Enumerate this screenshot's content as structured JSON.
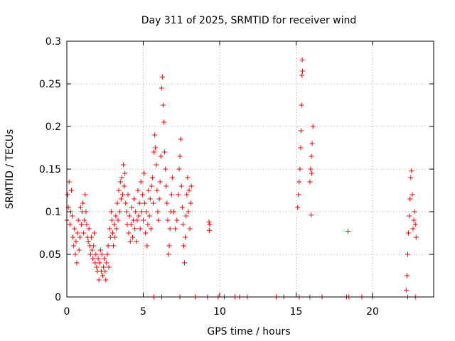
{
  "chart_data": {
    "type": "scatter",
    "title": "Day 311 of 2025, SRMTID for receiver wind",
    "xlabel": "GPS time / hours",
    "ylabel": "SRMTID / TECUs",
    "xlim": [
      0,
      24
    ],
    "ylim": [
      0,
      0.3
    ],
    "x_ticks": [
      0,
      5,
      10,
      15,
      20
    ],
    "x_tick_labels": [
      "0",
      "5",
      "10",
      "15",
      "20"
    ],
    "y_ticks": [
      0,
      0.05,
      0.1,
      0.15,
      0.2,
      0.25,
      0.3
    ],
    "y_tick_labels": [
      "0",
      "0.05",
      "0.1",
      "0.15",
      "0.2",
      "0.25",
      "0.3"
    ],
    "grid": true,
    "marker": "+",
    "color": "#ff0000",
    "series": [
      {
        "name": "SRMTID",
        "points": [
          [
            0.0,
            0.09
          ],
          [
            0.05,
            0.12
          ],
          [
            0.1,
            0.105
          ],
          [
            0.15,
            0.135
          ],
          [
            0.2,
            0.085
          ],
          [
            0.25,
            0.1
          ],
          [
            0.3,
            0.125
          ],
          [
            0.35,
            0.095
          ],
          [
            0.4,
            0.07
          ],
          [
            0.45,
            0.06
          ],
          [
            0.5,
            0.08
          ],
          [
            0.55,
            0.05
          ],
          [
            0.6,
            0.065
          ],
          [
            0.65,
            0.04
          ],
          [
            0.7,
            0.075
          ],
          [
            0.75,
            0.09
          ],
          [
            0.8,
            0.055
          ],
          [
            0.85,
            0.07
          ],
          [
            0.9,
            0.105
          ],
          [
            0.95,
            0.085
          ],
          [
            1.0,
            0.1
          ],
          [
            1.05,
            0.11
          ],
          [
            1.1,
            0.075
          ],
          [
            1.15,
            0.09
          ],
          [
            1.2,
            0.12
          ],
          [
            1.25,
            0.1
          ],
          [
            1.3,
            0.085
          ],
          [
            1.35,
            0.07
          ],
          [
            1.4,
            0.065
          ],
          [
            1.45,
            0.08
          ],
          [
            1.5,
            0.06
          ],
          [
            1.55,
            0.05
          ],
          [
            1.6,
            0.07
          ],
          [
            1.65,
            0.055
          ],
          [
            1.7,
            0.045
          ],
          [
            1.75,
            0.06
          ],
          [
            1.8,
            0.075
          ],
          [
            1.85,
            0.04
          ],
          [
            1.9,
            0.05
          ],
          [
            1.95,
            0.035
          ],
          [
            2.0,
            0.03
          ],
          [
            2.05,
            0.045
          ],
          [
            2.1,
            0.02
          ],
          [
            2.15,
            0.04
          ],
          [
            2.2,
            0.055
          ],
          [
            2.25,
            0.03
          ],
          [
            2.3,
            0.05
          ],
          [
            2.35,
            0.025
          ],
          [
            2.4,
            0.035
          ],
          [
            2.45,
            0.045
          ],
          [
            2.5,
            0.03
          ],
          [
            2.55,
            0.02
          ],
          [
            2.6,
            0.04
          ],
          [
            2.65,
            0.05
          ],
          [
            2.7,
            0.06
          ],
          [
            2.75,
            0.035
          ],
          [
            2.8,
            0.08
          ],
          [
            2.85,
            0.07
          ],
          [
            2.9,
            0.1
          ],
          [
            2.95,
            0.09
          ],
          [
            3.0,
            0.075
          ],
          [
            3.05,
            0.06
          ],
          [
            3.1,
            0.085
          ],
          [
            3.15,
            0.07
          ],
          [
            3.2,
            0.095
          ],
          [
            3.25,
            0.08
          ],
          [
            3.3,
            0.11
          ],
          [
            3.35,
            0.09
          ],
          [
            3.4,
            0.125
          ],
          [
            3.45,
            0.1
          ],
          [
            3.5,
            0.135
          ],
          [
            3.55,
            0.115
          ],
          [
            3.6,
            0.14
          ],
          [
            3.65,
            0.12
          ],
          [
            3.7,
            0.155
          ],
          [
            3.75,
            0.13
          ],
          [
            3.8,
            0.145
          ],
          [
            3.85,
            0.11
          ],
          [
            3.9,
            0.1
          ],
          [
            3.95,
            0.085
          ],
          [
            4.0,
            0.12
          ],
          [
            4.05,
            0.075
          ],
          [
            4.1,
            0.095
          ],
          [
            4.15,
            0.065
          ],
          [
            4.2,
            0.085
          ],
          [
            4.25,
            0.105
          ],
          [
            4.3,
            0.07
          ],
          [
            4.35,
            0.09
          ],
          [
            4.4,
            0.115
          ],
          [
            4.45,
            0.08
          ],
          [
            4.5,
            0.1
          ],
          [
            4.55,
            0.065
          ],
          [
            4.6,
            0.09
          ],
          [
            4.65,
            0.125
          ],
          [
            4.7,
            0.095
          ],
          [
            4.75,
            0.11
          ],
          [
            4.8,
            0.08
          ],
          [
            4.85,
            0.135
          ],
          [
            4.9,
            0.1
          ],
          [
            4.95,
            0.12
          ],
          [
            5.0,
            0.09
          ],
          [
            5.05,
            0.145
          ],
          [
            5.1,
            0.11
          ],
          [
            5.15,
            0.075
          ],
          [
            5.2,
            0.1
          ],
          [
            5.25,
            0.06
          ],
          [
            5.3,
            0.085
          ],
          [
            5.35,
            0.125
          ],
          [
            5.4,
            0.095
          ],
          [
            5.45,
            0.115
          ],
          [
            5.5,
            0.08
          ],
          [
            5.55,
            0.13
          ],
          [
            5.6,
            0.14
          ],
          [
            5.65,
            0.11
          ],
          [
            5.7,
            0.17
          ],
          [
            5.75,
            0.19
          ],
          [
            5.8,
            0.175
          ],
          [
            5.85,
            0.155
          ],
          [
            5.9,
            0.125
          ],
          [
            5.95,
            0.1
          ],
          [
            6.0,
            0.09
          ],
          [
            6.05,
            0.115
          ],
          [
            6.1,
            0.135
          ],
          [
            6.15,
            0.165
          ],
          [
            6.2,
            0.245
          ],
          [
            6.25,
            0.258
          ],
          [
            6.3,
            0.225
          ],
          [
            6.35,
            0.205
          ],
          [
            6.4,
            0.17
          ],
          [
            6.45,
            0.15
          ],
          [
            6.5,
            0.13
          ],
          [
            6.55,
            0.11
          ],
          [
            6.6,
            0.09
          ],
          [
            6.65,
            0.05
          ],
          [
            6.7,
            0.06
          ],
          [
            6.75,
            0.08
          ],
          [
            6.8,
            0.1
          ],
          [
            6.85,
            0.12
          ],
          [
            6.9,
            0.14
          ],
          [
            7.0,
            0.1
          ],
          [
            7.1,
            0.08
          ],
          [
            7.2,
            0.09
          ],
          [
            7.3,
            0.12
          ],
          [
            7.35,
            0.15
          ],
          [
            7.4,
            0.165
          ],
          [
            7.45,
            0.185
          ],
          [
            7.5,
            0.13
          ],
          [
            7.55,
            0.105
          ],
          [
            7.6,
            0.085
          ],
          [
            7.65,
            0.06
          ],
          [
            7.7,
            0.04
          ],
          [
            7.75,
            0.07
          ],
          [
            7.8,
            0.095
          ],
          [
            7.85,
            0.12
          ],
          [
            7.9,
            0.14
          ],
          [
            7.95,
            0.1
          ],
          [
            8.0,
            0.125
          ],
          [
            8.05,
            0.08
          ],
          [
            8.1,
            0.11
          ],
          [
            8.15,
            0.13
          ],
          [
            9.3,
            0.088
          ],
          [
            9.32,
            0.078
          ],
          [
            9.35,
            0.085
          ],
          [
            15.1,
            0.105
          ],
          [
            15.15,
            0.12
          ],
          [
            15.2,
            0.135
          ],
          [
            15.25,
            0.15
          ],
          [
            15.3,
            0.175
          ],
          [
            15.32,
            0.195
          ],
          [
            15.35,
            0.225
          ],
          [
            15.38,
            0.26
          ],
          [
            15.4,
            0.278
          ],
          [
            15.42,
            0.265
          ],
          [
            15.9,
            0.135
          ],
          [
            15.95,
            0.15
          ],
          [
            16.0,
            0.165
          ],
          [
            16.05,
            0.18
          ],
          [
            16.1,
            0.2
          ],
          [
            16.02,
            0.145
          ],
          [
            15.98,
            0.096
          ],
          [
            18.4,
            0.077
          ],
          [
            22.2,
            0.008
          ],
          [
            22.25,
            0.025
          ],
          [
            22.3,
            0.05
          ],
          [
            22.35,
            0.075
          ],
          [
            22.4,
            0.095
          ],
          [
            22.45,
            0.115
          ],
          [
            22.5,
            0.14
          ],
          [
            22.55,
            0.148
          ],
          [
            22.6,
            0.12
          ],
          [
            22.65,
            0.08
          ],
          [
            22.7,
            0.09
          ],
          [
            22.75,
            0.1
          ],
          [
            22.8,
            0.085
          ],
          [
            22.85,
            0.07
          ]
        ]
      }
    ],
    "zero_markers_x": [
      5.7,
      6.2,
      7.4,
      8.4,
      9.2,
      9.9,
      10.3,
      11.0,
      11.3,
      11.8,
      13.7,
      14.2,
      15.2,
      15.9,
      16.7,
      18.3,
      18.45,
      19.3,
      20.0,
      22.3,
      22.8
    ]
  }
}
